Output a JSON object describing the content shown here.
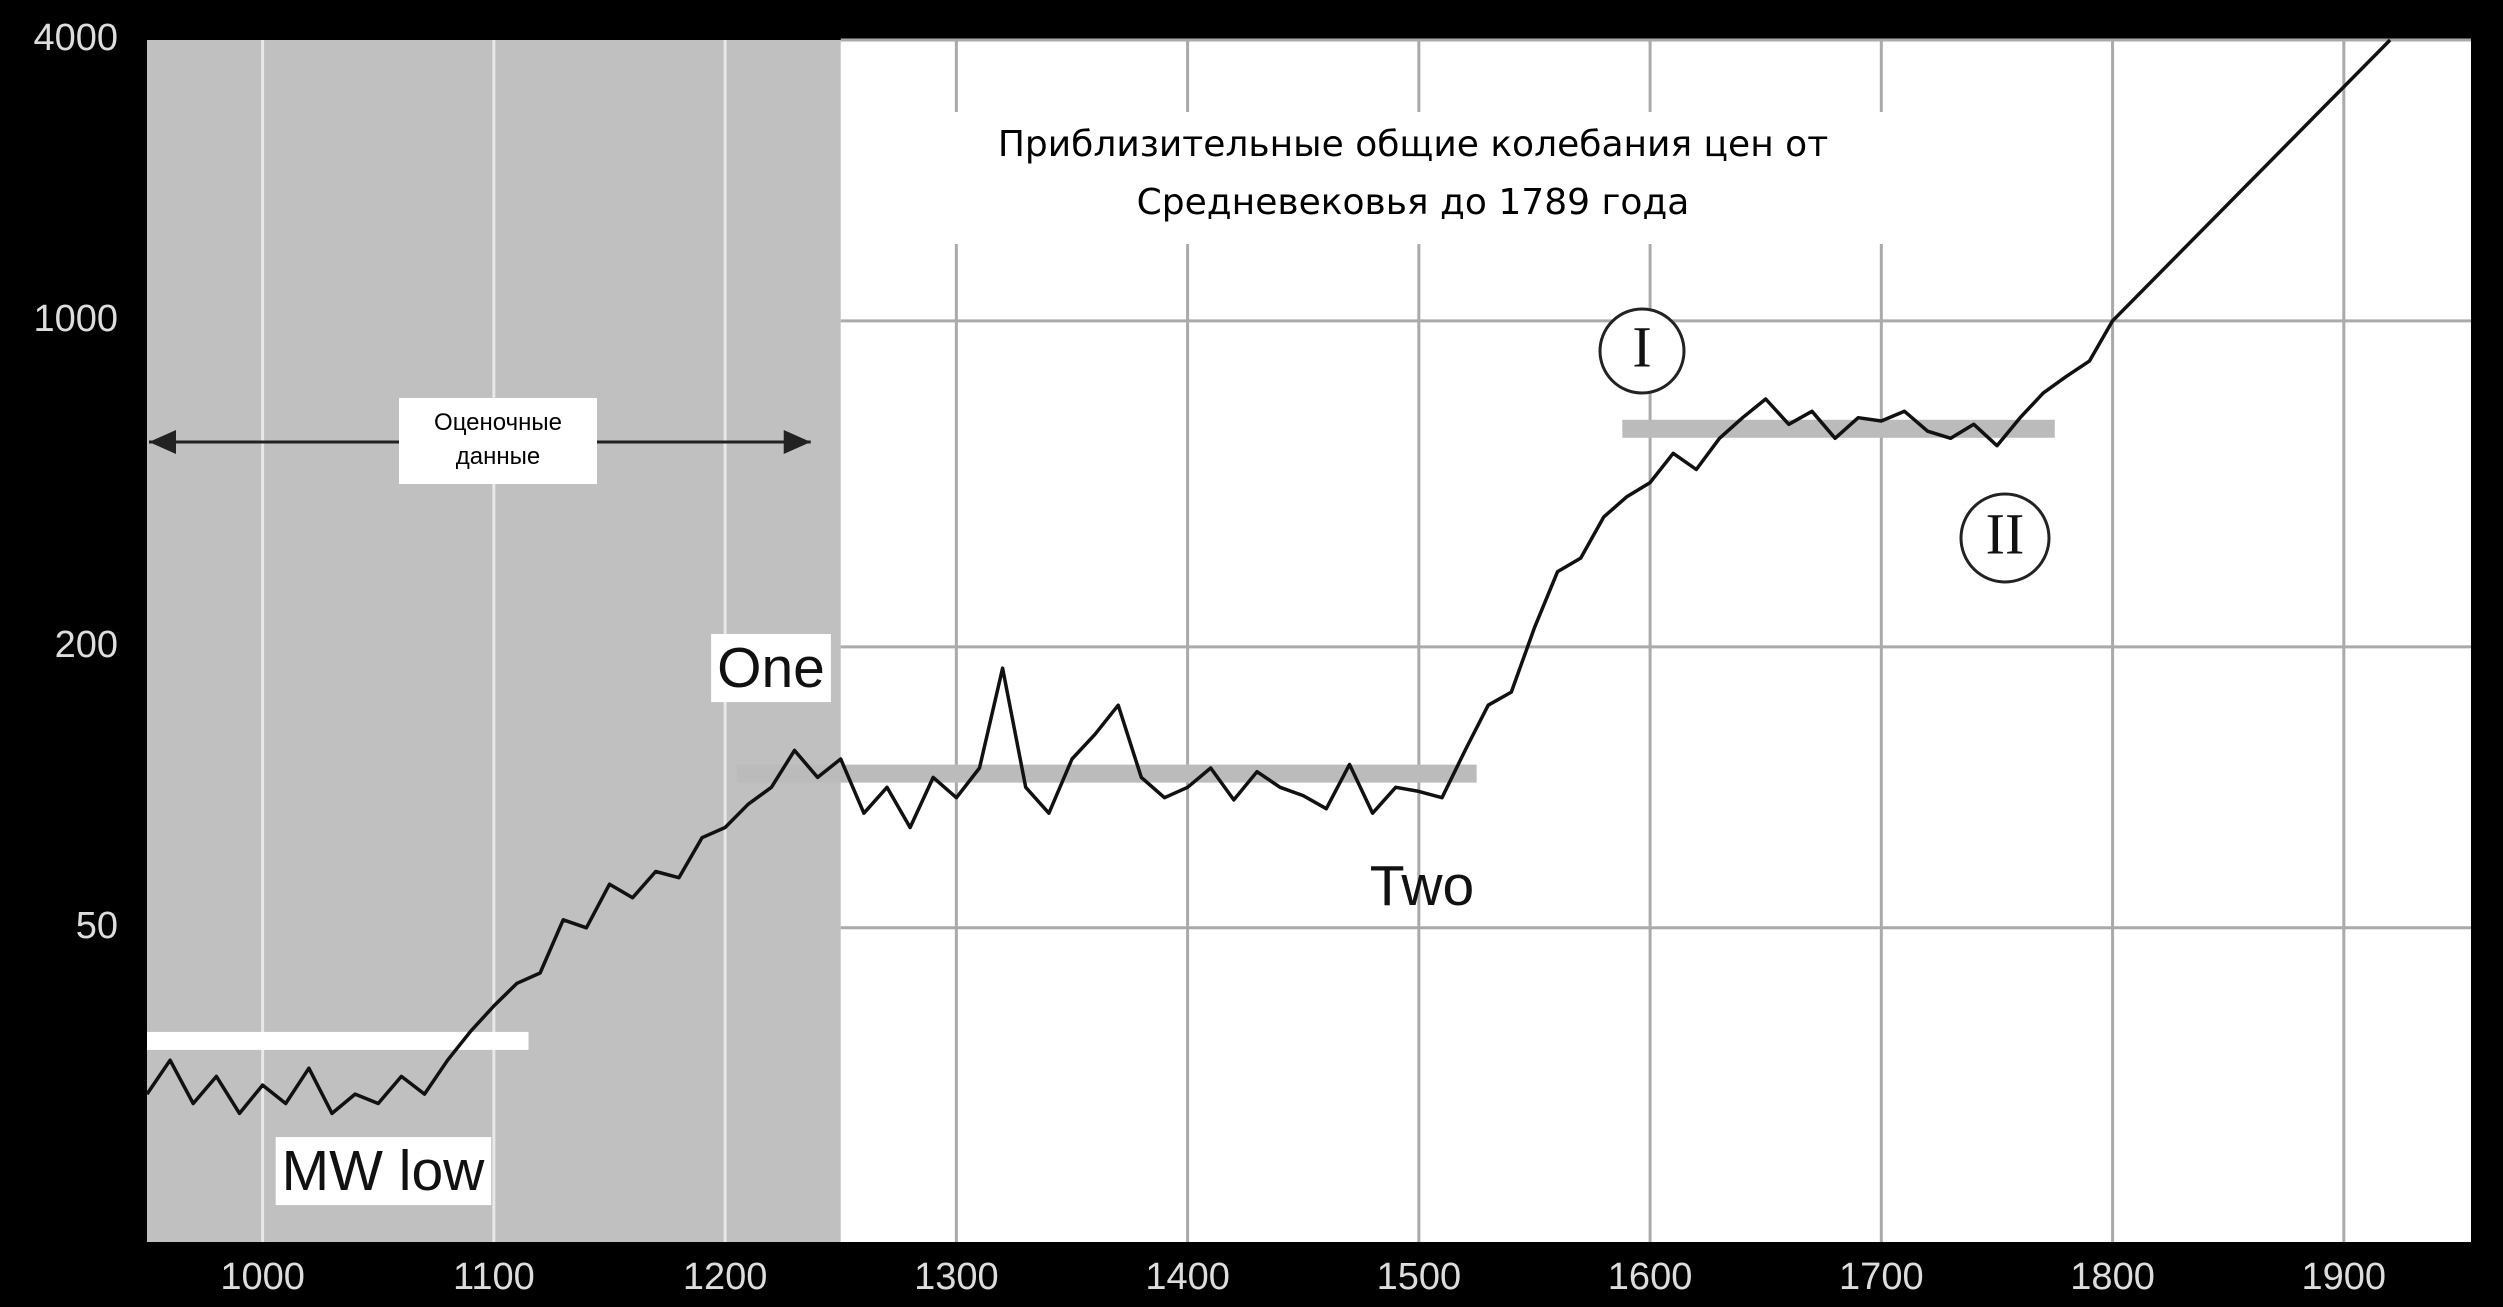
{
  "chart_data": {
    "type": "line",
    "title": [
      "Приблизительные общие колебания цен от",
      "Средневековья до 1789 года"
    ],
    "x": [
      950,
      960,
      970,
      980,
      990,
      1000,
      1010,
      1020,
      1030,
      1040,
      1050,
      1060,
      1070,
      1080,
      1090,
      1100,
      1110,
      1120,
      1130,
      1140,
      1150,
      1160,
      1170,
      1180,
      1190,
      1200,
      1210,
      1220,
      1230,
      1240,
      1250,
      1260,
      1270,
      1280,
      1290,
      1300,
      1310,
      1320,
      1330,
      1340,
      1350,
      1360,
      1370,
      1380,
      1390,
      1400,
      1410,
      1420,
      1430,
      1440,
      1450,
      1460,
      1470,
      1480,
      1490,
      1500,
      1510,
      1520,
      1530,
      1540,
      1550,
      1560,
      1570,
      1580,
      1590,
      1600,
      1610,
      1620,
      1630,
      1640,
      1650,
      1660,
      1670,
      1680,
      1690,
      1700,
      1710,
      1720,
      1730,
      1740,
      1750,
      1760,
      1770,
      1780,
      1790,
      1800,
      1920
    ],
    "values": [
      22,
      26,
      21,
      24,
      20,
      23,
      21,
      25,
      20,
      22,
      21,
      24,
      22,
      26,
      30,
      34,
      38,
      40,
      52,
      50,
      62,
      58,
      66,
      64,
      78,
      82,
      92,
      100,
      120,
      105,
      115,
      88,
      100,
      82,
      105,
      95,
      110,
      180,
      100,
      88,
      115,
      130,
      150,
      105,
      95,
      100,
      110,
      94,
      108,
      100,
      96,
      90,
      112,
      88,
      100,
      98,
      95,
      120,
      150,
      160,
      220,
      290,
      310,
      380,
      420,
      450,
      520,
      480,
      560,
      620,
      680,
      600,
      640,
      560,
      620,
      610,
      640,
      580,
      560,
      600,
      540,
      620,
      700,
      760,
      820,
      1000,
      4000
    ],
    "color": "#111111",
    "xlim": [
      950,
      1955
    ],
    "ylim": [
      10.6,
      4000
    ],
    "log_y": true,
    "xticks": [
      1000,
      1100,
      1200,
      1300,
      1400,
      1500,
      1600,
      1700,
      1800,
      1900
    ],
    "yticks": [
      50,
      200,
      1000,
      4000
    ],
    "grid": true,
    "shaded_xrange": [
      950,
      1250
    ],
    "shaded_color": "#c0c0c0",
    "shaded_label": "Оценочные данные",
    "reference_bars": [
      {
        "x": [
          950,
          1115
        ],
        "value": 28.6,
        "color": "#ffffff"
      },
      {
        "x": [
          1205,
          1525
        ],
        "value": 107,
        "color": "#bbbbbb"
      },
      {
        "x": [
          1588,
          1775
        ],
        "value": 587,
        "color": "#bbbbbb"
      }
    ],
    "annotations": [
      "One",
      "Two",
      "MW low",
      "I",
      "II"
    ]
  }
}
